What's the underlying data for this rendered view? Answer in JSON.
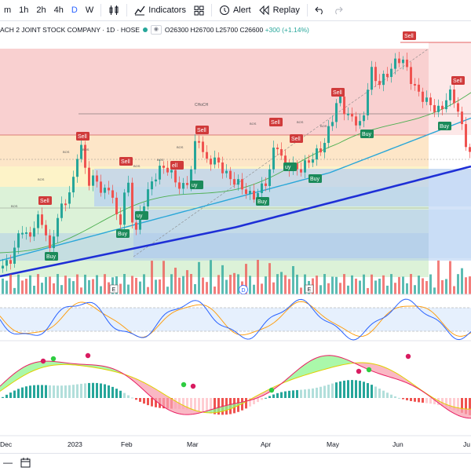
{
  "toolbar": {
    "intervals": [
      "m",
      "1h",
      "2h",
      "4h",
      "D",
      "W"
    ],
    "active_interval": "D",
    "indicators_label": "Indicators",
    "alert_label": "Alert",
    "replay_label": "Replay"
  },
  "legend": {
    "symbol_title": "ACH 2 JOINT STOCK COMPANY · 1D · HOSE",
    "open": "O26300",
    "high": "H26700",
    "low": "L25700",
    "close": "C26600",
    "change": "+300 (+1.14%)"
  },
  "time_axis": [
    "Dec",
    "2023",
    "Feb",
    "Mar",
    "Apr",
    "May",
    "Jun",
    "Ju"
  ],
  "event_markers": [
    "E",
    "D",
    "E"
  ],
  "annotations": {
    "choch": "CHoCH",
    "buy": "Buy",
    "sell": "Sell",
    "buy_partial": "uy",
    "sell_partial": "ell",
    "bos": "BOS"
  },
  "colors": {
    "up": "#26a69a",
    "down": "#ef5350",
    "ma_long": "#1e2fd6",
    "ma_mid": "#2aa7d8",
    "ma_short": "#4caf50",
    "zone_red": "#f8c8c8",
    "zone_orange": "#fde3c2",
    "zone_green": "#d9f2d4",
    "zone_blue": "#c5d8f5"
  },
  "icons": [
    "candles-icon",
    "indicators-icon",
    "templates-icon",
    "alert-icon",
    "replay-icon",
    "undo-icon",
    "redo-icon",
    "calendar-icon"
  ]
}
